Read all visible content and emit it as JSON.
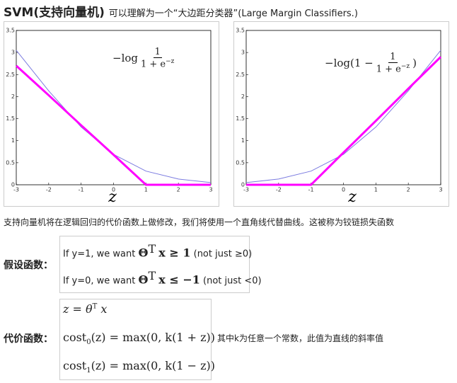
{
  "header": {
    "title": "SVM(支持向量机)",
    "subtitle": "可以理解为一个“大边距分类器”(Large Margin Classifiers.)"
  },
  "plots": [
    {
      "formula": {
        "prefix": "−log",
        "numerator": "1",
        "denominator": "1 + e",
        "exponent": "−z",
        "suffix": ""
      },
      "xlabel": "z",
      "x": [
        -3,
        -2,
        -1,
        0,
        1,
        2,
        3
      ],
      "series": [
        {
          "color": "#7b7be0",
          "values": [
            3.05,
            2.13,
            1.31,
            0.69,
            0.31,
            0.13,
            0.05
          ]
        },
        {
          "color": "#ff00ff",
          "values": [
            2.7,
            2.03,
            1.35,
            0.68,
            0,
            0,
            0
          ]
        }
      ],
      "xlim": [
        -3,
        3
      ],
      "ylim": [
        0,
        3.5
      ],
      "xticks": [
        -3,
        -2,
        -1,
        0,
        1,
        2,
        3
      ],
      "yticks": [
        0,
        0.5,
        1,
        1.5,
        2,
        2.5,
        3,
        3.5
      ]
    },
    {
      "formula": {
        "prefix": "−log(1 −",
        "numerator": "1",
        "denominator": "1 + e",
        "exponent": "−z",
        "suffix": ")"
      },
      "xlabel": "z",
      "x": [
        -3,
        -2,
        -1,
        0,
        1,
        2,
        3
      ],
      "series": [
        {
          "color": "#7b7be0",
          "values": [
            0.05,
            0.13,
            0.31,
            0.69,
            1.31,
            2.13,
            3.05
          ]
        },
        {
          "color": "#ff00ff",
          "values": [
            0,
            0,
            0,
            0.73,
            1.45,
            2.18,
            2.9
          ]
        }
      ],
      "xlim": [
        -3,
        3
      ],
      "ylim": [
        0,
        3.5
      ],
      "xticks": [
        -3,
        -2,
        -1,
        0,
        1,
        2,
        3
      ],
      "yticks": [
        0,
        0.5,
        1,
        1.5,
        2,
        2.5,
        3,
        3.5
      ]
    }
  ],
  "paragraph": "支持向量机将在逻辑回归的代价函数上做修改，我们将使用一个直角线代替曲线。这被称为铰链损失函数",
  "hypothesis": {
    "label": "假设函数：",
    "lines": [
      {
        "text": "If y=1, we want",
        "theta": "Θ",
        "sup": "T",
        "expr": "x ≥ 1",
        "note": "(not just ≥0)"
      },
      {
        "text": "If y=0, we want",
        "theta": "Θ",
        "sup": "T",
        "expr": "x ≤ −1",
        "note": "(not just <0)"
      }
    ]
  },
  "cost": {
    "label": "代价函数：",
    "z_line": {
      "lhs": "z = θ",
      "sup": "T",
      "rhs": "x"
    },
    "lines": [
      {
        "name": "cost",
        "sub": "0",
        "expr": "(z) = max(0, k(1 + z))"
      },
      {
        "name": "cost",
        "sub": "1",
        "expr": "(z) = max(0, k(1 − z))"
      }
    ],
    "note": "其中k为任意一个常数，此值为直线的斜率值"
  }
}
